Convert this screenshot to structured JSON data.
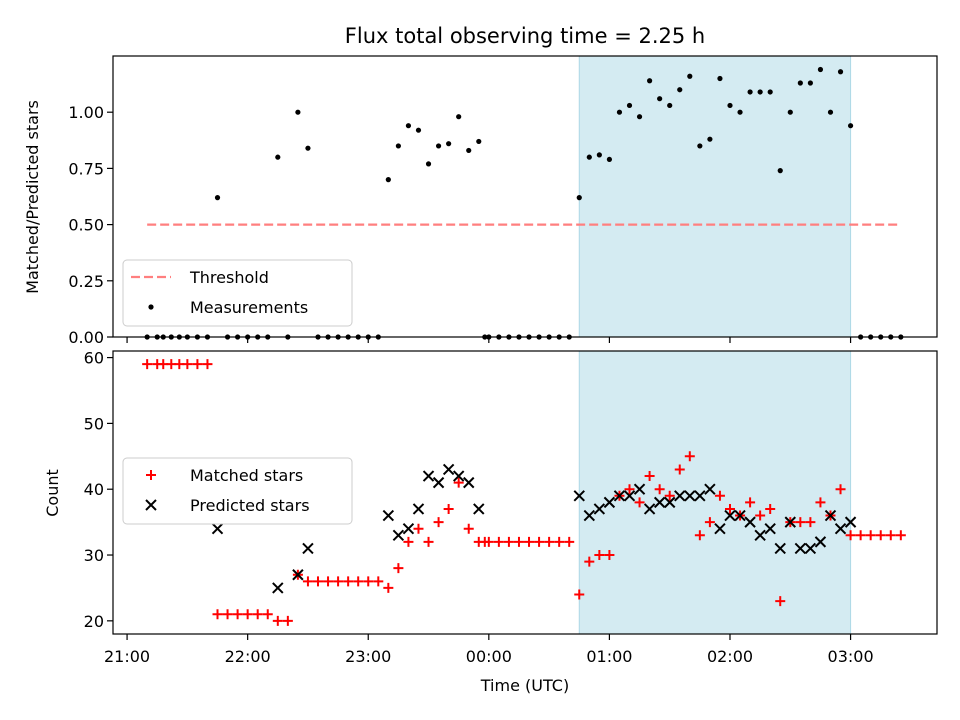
{
  "title": "Flux total observing time = 2.25 h",
  "chart_data": [
    {
      "type": "scatter",
      "ylabel": "Matched/Predicted stars",
      "xlabel": "",
      "ylim": [
        0,
        1.25
      ],
      "yticks": [
        "0.00",
        "0.25",
        "0.50",
        "0.75",
        "1.00"
      ],
      "ytick_values": [
        0,
        0.25,
        0.5,
        0.75,
        1.0
      ],
      "threshold": {
        "name": "Threshold",
        "value": 0.5,
        "x_range": [
          "21:10",
          "03:25"
        ],
        "color": "#ff7f7f"
      },
      "shaded_region": {
        "start": "00:45",
        "end": "03:00",
        "color": "#add8e6"
      },
      "legend": {
        "position": "lower-left",
        "entries": [
          "Threshold",
          "Measurements"
        ]
      },
      "series": [
        {
          "name": "Measurements",
          "marker": "dot",
          "color": "#000000",
          "points": [
            [
              "21:10",
              0
            ],
            [
              "21:15",
              0
            ],
            [
              "21:18",
              0
            ],
            [
              "21:22",
              0
            ],
            [
              "21:26",
              0
            ],
            [
              "21:30",
              0
            ],
            [
              "21:35",
              0
            ],
            [
              "21:40",
              0
            ],
            [
              "21:45",
              0.62
            ],
            [
              "21:50",
              0
            ],
            [
              "21:55",
              0
            ],
            [
              "22:00",
              0
            ],
            [
              "22:05",
              0
            ],
            [
              "22:10",
              0
            ],
            [
              "22:15",
              0.8
            ],
            [
              "22:20",
              0
            ],
            [
              "22:25",
              1.0
            ],
            [
              "22:30",
              0.84
            ],
            [
              "22:35",
              0
            ],
            [
              "22:40",
              0
            ],
            [
              "22:45",
              0
            ],
            [
              "22:50",
              0
            ],
            [
              "22:55",
              0
            ],
            [
              "23:00",
              0
            ],
            [
              "23:05",
              0
            ],
            [
              "23:10",
              0.7
            ],
            [
              "23:15",
              0.85
            ],
            [
              "23:20",
              0.94
            ],
            [
              "23:25",
              0.92
            ],
            [
              "23:30",
              0.77
            ],
            [
              "23:35",
              0.85
            ],
            [
              "23:40",
              0.86
            ],
            [
              "23:45",
              0.98
            ],
            [
              "23:50",
              0.83
            ],
            [
              "23:55",
              0.87
            ],
            [
              "23:58",
              0
            ],
            [
              "00:00",
              0
            ],
            [
              "00:05",
              0
            ],
            [
              "00:10",
              0
            ],
            [
              "00:15",
              0
            ],
            [
              "00:20",
              0
            ],
            [
              "00:25",
              0
            ],
            [
              "00:30",
              0
            ],
            [
              "00:35",
              0
            ],
            [
              "00:40",
              0
            ],
            [
              "00:45",
              0.62
            ],
            [
              "00:50",
              0.8
            ],
            [
              "00:55",
              0.81
            ],
            [
              "01:00",
              0.79
            ],
            [
              "01:05",
              1.0
            ],
            [
              "01:10",
              1.03
            ],
            [
              "01:15",
              0.98
            ],
            [
              "01:20",
              1.14
            ],
            [
              "01:25",
              1.06
            ],
            [
              "01:30",
              1.03
            ],
            [
              "01:35",
              1.1
            ],
            [
              "01:40",
              1.16
            ],
            [
              "01:45",
              0.85
            ],
            [
              "01:50",
              0.88
            ],
            [
              "01:55",
              1.15
            ],
            [
              "02:00",
              1.03
            ],
            [
              "02:05",
              1.0
            ],
            [
              "02:10",
              1.09
            ],
            [
              "02:15",
              1.09
            ],
            [
              "02:20",
              1.09
            ],
            [
              "02:25",
              0.74
            ],
            [
              "02:30",
              1.0
            ],
            [
              "02:35",
              1.13
            ],
            [
              "02:40",
              1.13
            ],
            [
              "02:45",
              1.19
            ],
            [
              "02:50",
              1.0
            ],
            [
              "02:55",
              1.18
            ],
            [
              "03:00",
              0.94
            ],
            [
              "03:05",
              0
            ],
            [
              "03:10",
              0
            ],
            [
              "03:15",
              0
            ],
            [
              "03:20",
              0
            ],
            [
              "03:25",
              0
            ]
          ]
        }
      ]
    },
    {
      "type": "scatter",
      "ylabel": "Count",
      "xlabel": "Time (UTC)",
      "ylim": [
        18,
        61
      ],
      "yticks": [
        "20",
        "30",
        "40",
        "50",
        "60"
      ],
      "ytick_values": [
        20,
        30,
        40,
        50,
        60
      ],
      "xlim": [
        "20:53",
        "03:43"
      ],
      "xticks": [
        "21:00",
        "22:00",
        "23:00",
        "00:00",
        "01:00",
        "02:00",
        "03:00"
      ],
      "shaded_region": {
        "start": "00:45",
        "end": "03:00",
        "color": "#add8e6"
      },
      "legend": {
        "position": "center-left",
        "entries": [
          "Matched stars",
          "Predicted stars"
        ]
      },
      "series": [
        {
          "name": "Matched stars",
          "marker": "plus",
          "color": "#ff0000",
          "points": [
            [
              "21:10",
              59
            ],
            [
              "21:15",
              59
            ],
            [
              "21:18",
              59
            ],
            [
              "21:22",
              59
            ],
            [
              "21:26",
              59
            ],
            [
              "21:30",
              59
            ],
            [
              "21:35",
              59
            ],
            [
              "21:40",
              59
            ],
            [
              "21:45",
              21
            ],
            [
              "21:50",
              21
            ],
            [
              "21:55",
              21
            ],
            [
              "22:00",
              21
            ],
            [
              "22:05",
              21
            ],
            [
              "22:10",
              21
            ],
            [
              "22:15",
              20
            ],
            [
              "22:20",
              20
            ],
            [
              "22:25",
              27
            ],
            [
              "22:30",
              26
            ],
            [
              "22:35",
              26
            ],
            [
              "22:40",
              26
            ],
            [
              "22:45",
              26
            ],
            [
              "22:50",
              26
            ],
            [
              "22:55",
              26
            ],
            [
              "23:00",
              26
            ],
            [
              "23:05",
              26
            ],
            [
              "23:10",
              25
            ],
            [
              "23:15",
              28
            ],
            [
              "23:20",
              32
            ],
            [
              "23:25",
              34
            ],
            [
              "23:30",
              32
            ],
            [
              "23:35",
              35
            ],
            [
              "23:40",
              37
            ],
            [
              "23:45",
              41
            ],
            [
              "23:50",
              34
            ],
            [
              "23:55",
              32
            ],
            [
              "23:58",
              32
            ],
            [
              "00:00",
              32
            ],
            [
              "00:05",
              32
            ],
            [
              "00:10",
              32
            ],
            [
              "00:15",
              32
            ],
            [
              "00:20",
              32
            ],
            [
              "00:25",
              32
            ],
            [
              "00:30",
              32
            ],
            [
              "00:35",
              32
            ],
            [
              "00:40",
              32
            ],
            [
              "00:45",
              24
            ],
            [
              "00:50",
              29
            ],
            [
              "00:55",
              30
            ],
            [
              "01:00",
              30
            ],
            [
              "01:05",
              39
            ],
            [
              "01:10",
              40
            ],
            [
              "01:15",
              38
            ],
            [
              "01:20",
              42
            ],
            [
              "01:25",
              40
            ],
            [
              "01:30",
              39
            ],
            [
              "01:35",
              43
            ],
            [
              "01:40",
              45
            ],
            [
              "01:45",
              33
            ],
            [
              "01:50",
              35
            ],
            [
              "01:55",
              39
            ],
            [
              "02:00",
              37
            ],
            [
              "02:05",
              36
            ],
            [
              "02:10",
              38
            ],
            [
              "02:15",
              36
            ],
            [
              "02:20",
              37
            ],
            [
              "02:25",
              23
            ],
            [
              "02:30",
              35
            ],
            [
              "02:35",
              35
            ],
            [
              "02:40",
              35
            ],
            [
              "02:45",
              38
            ],
            [
              "02:50",
              36
            ],
            [
              "02:55",
              40
            ],
            [
              "03:00",
              33
            ],
            [
              "03:05",
              33
            ],
            [
              "03:10",
              33
            ],
            [
              "03:15",
              33
            ],
            [
              "03:20",
              33
            ],
            [
              "03:25",
              33
            ]
          ]
        },
        {
          "name": "Predicted stars",
          "marker": "cross",
          "color": "#000000",
          "points": [
            [
              "21:45",
              34
            ],
            [
              "22:15",
              25
            ],
            [
              "22:25",
              27
            ],
            [
              "22:30",
              31
            ],
            [
              "23:10",
              36
            ],
            [
              "23:15",
              33
            ],
            [
              "23:20",
              34
            ],
            [
              "23:25",
              37
            ],
            [
              "23:30",
              42
            ],
            [
              "23:35",
              41
            ],
            [
              "23:40",
              43
            ],
            [
              "23:45",
              42
            ],
            [
              "23:50",
              41
            ],
            [
              "23:55",
              37
            ],
            [
              "00:45",
              39
            ],
            [
              "00:50",
              36
            ],
            [
              "00:55",
              37
            ],
            [
              "01:00",
              38
            ],
            [
              "01:05",
              39
            ],
            [
              "01:10",
              39
            ],
            [
              "01:15",
              40
            ],
            [
              "01:20",
              37
            ],
            [
              "01:25",
              38
            ],
            [
              "01:30",
              38
            ],
            [
              "01:35",
              39
            ],
            [
              "01:40",
              39
            ],
            [
              "01:45",
              39
            ],
            [
              "01:50",
              40
            ],
            [
              "01:55",
              34
            ],
            [
              "02:00",
              36
            ],
            [
              "02:05",
              36
            ],
            [
              "02:10",
              35
            ],
            [
              "02:15",
              33
            ],
            [
              "02:20",
              34
            ],
            [
              "02:25",
              31
            ],
            [
              "02:30",
              35
            ],
            [
              "02:35",
              31
            ],
            [
              "02:40",
              31
            ],
            [
              "02:45",
              32
            ],
            [
              "02:50",
              36
            ],
            [
              "02:55",
              34
            ],
            [
              "03:00",
              35
            ]
          ]
        }
      ]
    }
  ]
}
